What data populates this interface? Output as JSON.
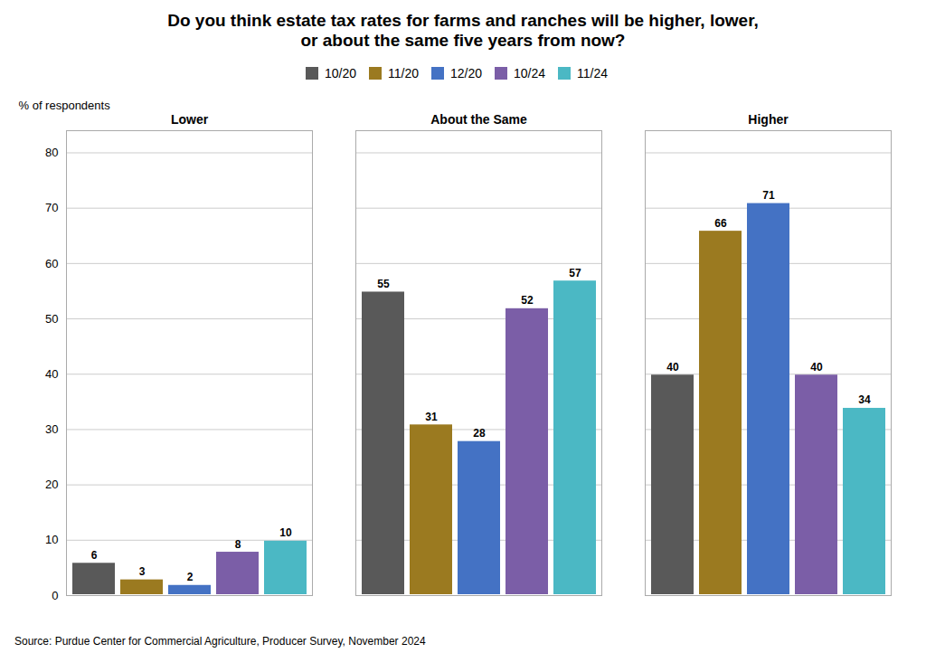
{
  "chart_data": {
    "type": "bar",
    "title": "Do you think estate tax rates for farms and ranches will be higher, lower,\nor about the same five years from now?",
    "ylabel": "% of respondents",
    "source": "Source: Purdue Center for Commercial Agriculture, Producer Survey, November 2024",
    "categories": [
      "Lower",
      "About the Same",
      "Higher"
    ],
    "series": [
      {
        "name": "10/20",
        "color": "#595959",
        "values": [
          6,
          55,
          40
        ]
      },
      {
        "name": "11/20",
        "color": "#9B7A20",
        "values": [
          3,
          31,
          66
        ]
      },
      {
        "name": "12/20",
        "color": "#4472C4",
        "values": [
          2,
          28,
          71
        ]
      },
      {
        "name": "10/24",
        "color": "#7B5EA7",
        "values": [
          8,
          52,
          40
        ]
      },
      {
        "name": "11/24",
        "color": "#4BB8C4",
        "values": [
          10,
          57,
          34
        ]
      }
    ],
    "ylim": [
      0,
      84
    ],
    "yticks": [
      0,
      10,
      20,
      30,
      40,
      50,
      60,
      70,
      80
    ],
    "grid": true,
    "data_labels": true,
    "legend": "top"
  }
}
